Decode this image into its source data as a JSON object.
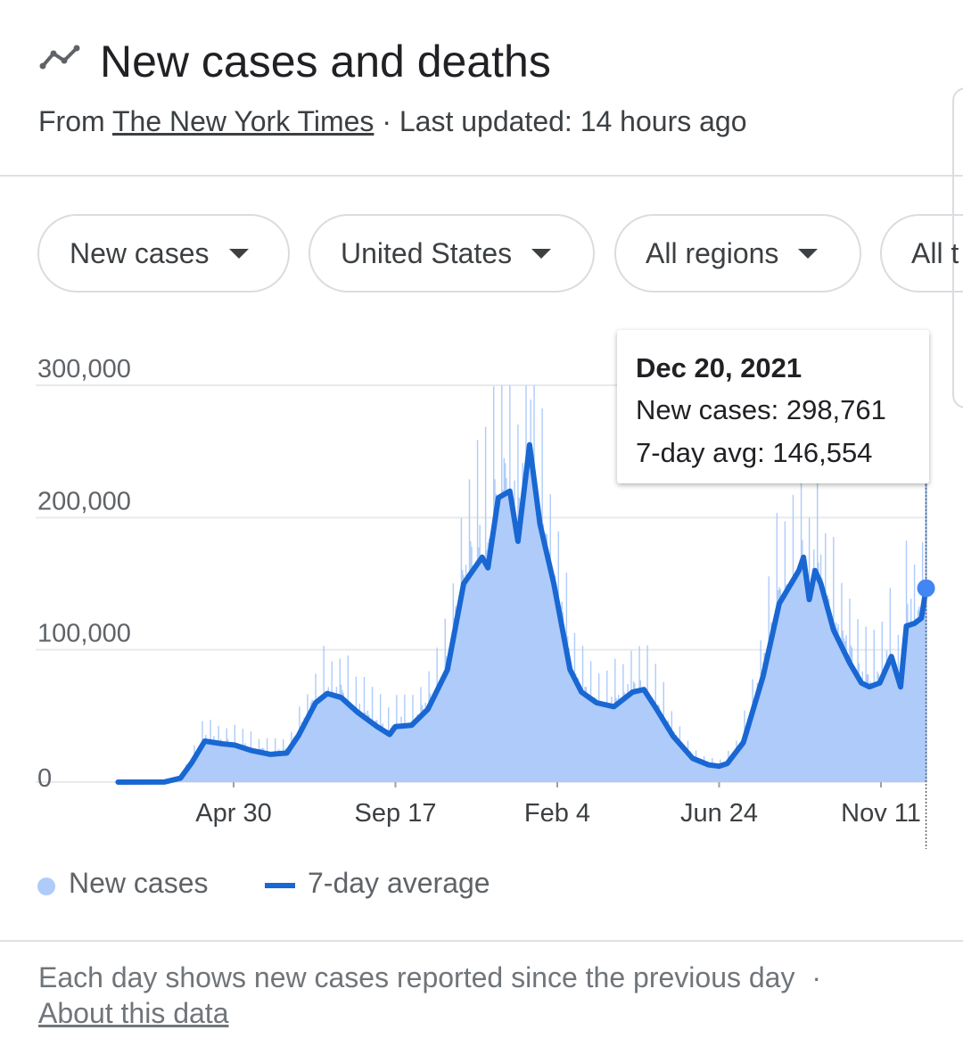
{
  "header": {
    "title": "New cases and deaths",
    "source_prefix": "From ",
    "source_link": "The New York Times",
    "updated": " · Last updated: 14 hours ago",
    "icon": "trending-line-icon"
  },
  "chips": [
    {
      "label": "New cases"
    },
    {
      "label": "United States"
    },
    {
      "label": "All regions"
    },
    {
      "label": "All t"
    }
  ],
  "tooltip": {
    "date": "Dec 20, 2021",
    "new_cases": "New cases: 298,761",
    "avg": "7-day avg: 146,554"
  },
  "legend": {
    "series1": "New cases",
    "series2": "7-day average"
  },
  "footer": {
    "note": "Each day shows new cases reported since the previous day",
    "separator": "·",
    "about": "About this data"
  },
  "colors": {
    "bars": "#aecbfa",
    "line": "#1967d2",
    "grid": "#e8eaed"
  },
  "chart_data": {
    "type": "line",
    "x_axis": "date",
    "ylim": [
      0,
      300000
    ],
    "yticks": [
      "300,000",
      "200,000",
      "100,000",
      "0"
    ],
    "ytick_values": [
      300000,
      200000,
      100000,
      0
    ],
    "xticks": [
      "Apr 30",
      "Sep 17",
      "Feb 4",
      "Jun 24",
      "Nov 11"
    ],
    "xtick_dates": [
      "2020-04-30",
      "2020-09-17",
      "2021-02-04",
      "2021-06-24",
      "2021-11-11"
    ],
    "series": [
      {
        "name": "7-day average",
        "points": [
          [
            "2020-01-21",
            0
          ],
          [
            "2020-03-01",
            100
          ],
          [
            "2020-03-15",
            3000
          ],
          [
            "2020-03-25",
            15000
          ],
          [
            "2020-04-05",
            31000
          ],
          [
            "2020-04-20",
            29000
          ],
          [
            "2020-05-01",
            28000
          ],
          [
            "2020-05-15",
            24000
          ],
          [
            "2020-06-01",
            21000
          ],
          [
            "2020-06-15",
            22000
          ],
          [
            "2020-06-25",
            35000
          ],
          [
            "2020-07-10",
            60000
          ],
          [
            "2020-07-20",
            67000
          ],
          [
            "2020-08-01",
            64000
          ],
          [
            "2020-08-15",
            53000
          ],
          [
            "2020-09-01",
            42000
          ],
          [
            "2020-09-12",
            36000
          ],
          [
            "2020-09-17",
            42000
          ],
          [
            "2020-10-01",
            43000
          ],
          [
            "2020-10-15",
            55000
          ],
          [
            "2020-11-01",
            85000
          ],
          [
            "2020-11-15",
            150000
          ],
          [
            "2020-12-01",
            170000
          ],
          [
            "2020-12-06",
            162000
          ],
          [
            "2020-12-15",
            215000
          ],
          [
            "2020-12-25",
            220000
          ],
          [
            "2021-01-01",
            182000
          ],
          [
            "2021-01-11",
            255000
          ],
          [
            "2021-01-20",
            195000
          ],
          [
            "2021-02-01",
            150000
          ],
          [
            "2021-02-15",
            85000
          ],
          [
            "2021-02-25",
            68000
          ],
          [
            "2021-03-10",
            60000
          ],
          [
            "2021-03-25",
            57000
          ],
          [
            "2021-04-10",
            68000
          ],
          [
            "2021-04-20",
            70000
          ],
          [
            "2021-05-01",
            55000
          ],
          [
            "2021-05-15",
            35000
          ],
          [
            "2021-06-01",
            18000
          ],
          [
            "2021-06-15",
            13000
          ],
          [
            "2021-06-24",
            12000
          ],
          [
            "2021-07-01",
            14000
          ],
          [
            "2021-07-15",
            30000
          ],
          [
            "2021-08-01",
            80000
          ],
          [
            "2021-08-15",
            135000
          ],
          [
            "2021-09-01",
            160000
          ],
          [
            "2021-09-05",
            170000
          ],
          [
            "2021-09-10",
            138000
          ],
          [
            "2021-09-15",
            160000
          ],
          [
            "2021-09-20",
            150000
          ],
          [
            "2021-10-01",
            115000
          ],
          [
            "2021-10-15",
            90000
          ],
          [
            "2021-10-25",
            75000
          ],
          [
            "2021-11-01",
            72000
          ],
          [
            "2021-11-10",
            75000
          ],
          [
            "2021-11-20",
            95000
          ],
          [
            "2021-11-28",
            72000
          ],
          [
            "2021-12-03",
            118000
          ],
          [
            "2021-12-10",
            120000
          ],
          [
            "2021-12-16",
            124000
          ],
          [
            "2021-12-20",
            146554
          ]
        ]
      },
      {
        "name": "New cases",
        "points": [
          [
            "2021-12-20",
            298761
          ]
        ]
      }
    ],
    "selected": {
      "date": "2021-12-20",
      "new_cases": 298761,
      "avg": 146554
    },
    "grid": true,
    "legend": "bottom-left"
  }
}
